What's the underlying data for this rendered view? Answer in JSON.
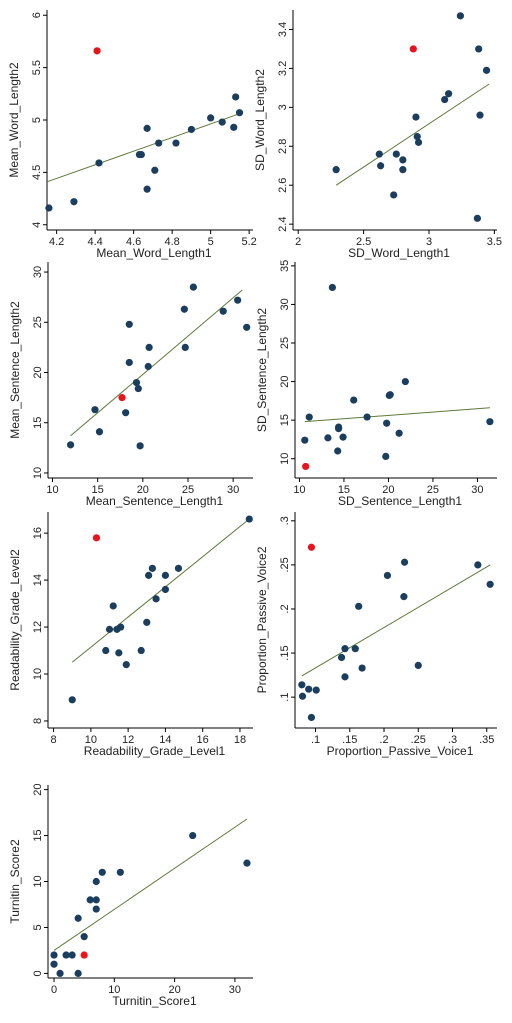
{
  "colors": {
    "point": "#1c3e5e",
    "outlier": "#e8141d",
    "fit_line": "#5f7a3a",
    "axis": "#000000"
  },
  "chart_data": [
    {
      "type": "scatter",
      "xlabel": "Mean_Word_Length1",
      "ylabel": "Mean_Word_Length2",
      "xlim": [
        4.15,
        5.22
      ],
      "ylim": [
        3.95,
        6.05
      ],
      "xticks": [
        4.2,
        4.4,
        4.6,
        4.8,
        5,
        5.2
      ],
      "xtick_labels": [
        "4.2",
        "4.4",
        "4.6",
        "4.8",
        "5",
        "5.2"
      ],
      "yticks": [
        4,
        4.5,
        5,
        5.5,
        6
      ],
      "ytick_labels": [
        "4",
        "4.5",
        "5",
        "5.5",
        "6"
      ],
      "points": [
        [
          4.16,
          4.16
        ],
        [
          4.29,
          4.22
        ],
        [
          4.42,
          4.59
        ],
        [
          4.63,
          4.67
        ],
        [
          4.64,
          4.67
        ],
        [
          4.67,
          4.34
        ],
        [
          4.67,
          4.92
        ],
        [
          4.71,
          4.52
        ],
        [
          4.73,
          4.78
        ],
        [
          4.82,
          4.78
        ],
        [
          4.9,
          4.91
        ],
        [
          5,
          5.02
        ],
        [
          5.06,
          4.98
        ],
        [
          5.12,
          4.93
        ],
        [
          5.13,
          5.22
        ],
        [
          5.15,
          5.07
        ]
      ],
      "outliers": [
        [
          4.41,
          5.66
        ]
      ],
      "fit_line": [
        [
          4.15,
          4.41
        ],
        [
          5.15,
          5.06
        ]
      ]
    },
    {
      "type": "scatter",
      "xlabel": "SD_Word_Length1",
      "ylabel": "SD_Word_Length2",
      "xlim": [
        1.96,
        3.52
      ],
      "ylim": [
        2.37,
        3.5
      ],
      "xticks": [
        2,
        2.5,
        3,
        3.5
      ],
      "xtick_labels": [
        "2",
        "2.5",
        "3",
        "3.5"
      ],
      "yticks": [
        2.4,
        2.6,
        2.8,
        3,
        3.2,
        3.4
      ],
      "ytick_labels": [
        "2.4",
        "2.6",
        "2.8",
        "3",
        "3.2",
        "3.4"
      ],
      "points": [
        [
          2.29,
          2.68
        ],
        [
          2.62,
          2.76
        ],
        [
          2.63,
          2.7
        ],
        [
          2.73,
          2.55
        ],
        [
          2.75,
          2.76
        ],
        [
          2.8,
          2.73
        ],
        [
          2.8,
          2.68
        ],
        [
          2.9,
          2.95
        ],
        [
          2.91,
          2.85
        ],
        [
          2.92,
          2.82
        ],
        [
          3.12,
          3.04
        ],
        [
          3.15,
          3.07
        ],
        [
          3.24,
          3.47
        ],
        [
          3.37,
          2.43
        ],
        [
          3.38,
          3.3
        ],
        [
          3.39,
          2.96
        ],
        [
          3.44,
          3.19
        ]
      ],
      "outliers": [
        [
          2.88,
          3.3
        ]
      ],
      "fit_line": [
        [
          2.29,
          2.6
        ],
        [
          3.46,
          3.12
        ]
      ]
    },
    {
      "type": "scatter",
      "xlabel": "Mean_Sentence_Length1",
      "ylabel": "Mean_Sentence_Length2",
      "xlim": [
        9.5,
        32.2
      ],
      "ylim": [
        9.5,
        31
      ],
      "xticks": [
        10,
        15,
        20,
        25,
        30
      ],
      "xtick_labels": [
        "10",
        "15",
        "20",
        "25",
        "30"
      ],
      "yticks": [
        10,
        15,
        20,
        25,
        30
      ],
      "ytick_labels": [
        "10",
        "15",
        "20",
        "25",
        "30"
      ],
      "points": [
        [
          12,
          12.8
        ],
        [
          14.7,
          16.3
        ],
        [
          15.2,
          14.1
        ],
        [
          18.1,
          16
        ],
        [
          18.5,
          24.8
        ],
        [
          18.5,
          21
        ],
        [
          19.3,
          19
        ],
        [
          19.5,
          18.4
        ],
        [
          19.7,
          12.7
        ],
        [
          20.6,
          20.6
        ],
        [
          20.7,
          22.5
        ],
        [
          24.6,
          26.3
        ],
        [
          24.7,
          22.5
        ],
        [
          25.6,
          28.5
        ],
        [
          28.9,
          26.1
        ],
        [
          30.5,
          27.2
        ],
        [
          31.5,
          24.5
        ]
      ],
      "outliers": [
        [
          17.7,
          17.5
        ]
      ],
      "fit_line": [
        [
          12,
          13.7
        ],
        [
          31,
          28.2
        ]
      ]
    },
    {
      "type": "scatter",
      "xlabel": "SD_Sentence_Length1",
      "ylabel": "SD_Sentence_Length2",
      "xlim": [
        9.5,
        32.2
      ],
      "ylim": [
        7.5,
        35.5
      ],
      "xticks": [
        10,
        15,
        20,
        25,
        30
      ],
      "xtick_labels": [
        "10",
        "15",
        "20",
        "25",
        "30"
      ],
      "yticks": [
        10,
        15,
        20,
        25,
        30,
        35
      ],
      "ytick_labels": [
        "10",
        "15",
        "20",
        "25",
        "30",
        "35"
      ],
      "points": [
        [
          10.6,
          12.4
        ],
        [
          11.1,
          15.4
        ],
        [
          13.2,
          12.7
        ],
        [
          13.7,
          32.2
        ],
        [
          14.3,
          11
        ],
        [
          14.4,
          13.9
        ],
        [
          14.4,
          14.1
        ],
        [
          14.9,
          12.8
        ],
        [
          16.1,
          17.6
        ],
        [
          17.6,
          15.4
        ],
        [
          19.7,
          10.3
        ],
        [
          19.8,
          14.6
        ],
        [
          20.1,
          18.2
        ],
        [
          20.2,
          18.3
        ],
        [
          21.2,
          13.3
        ],
        [
          21.9,
          20
        ],
        [
          31.4,
          14.8
        ]
      ],
      "outliers": [
        [
          10.7,
          9
        ]
      ],
      "fit_line": [
        [
          10.6,
          14.8
        ],
        [
          31.4,
          16.6
        ]
      ]
    },
    {
      "type": "scatter",
      "xlabel": "Readability_Grade_Level1",
      "ylabel": "Readability_Grade_Level2",
      "xlim": [
        7.7,
        18.7
      ],
      "ylim": [
        7.7,
        16.9
      ],
      "xticks": [
        8,
        10,
        12,
        14,
        16,
        18
      ],
      "xtick_labels": [
        "8",
        "10",
        "12",
        "14",
        "16",
        "18"
      ],
      "yticks": [
        8,
        10,
        12,
        14,
        16
      ],
      "ytick_labels": [
        "8",
        "10",
        "12",
        "14",
        "16"
      ],
      "points": [
        [
          9,
          8.9
        ],
        [
          10.8,
          11
        ],
        [
          11,
          11.9
        ],
        [
          11.2,
          12.9
        ],
        [
          11.4,
          11.9
        ],
        [
          11.5,
          10.9
        ],
        [
          11.6,
          12
        ],
        [
          11.9,
          10.4
        ],
        [
          12.7,
          11
        ],
        [
          13,
          12.2
        ],
        [
          13.1,
          14.2
        ],
        [
          13.3,
          14.5
        ],
        [
          13.5,
          13.2
        ],
        [
          14,
          14.2
        ],
        [
          14,
          13.6
        ],
        [
          14.7,
          14.5
        ],
        [
          18.5,
          16.6
        ]
      ],
      "outliers": [
        [
          10.3,
          15.8
        ]
      ],
      "fit_line": [
        [
          9,
          10.5
        ],
        [
          18.5,
          16.6
        ]
      ]
    },
    {
      "type": "scatter",
      "xlabel": "Proportion_Passive_Voice1",
      "ylabel": "Proportion_Passive_Voice2",
      "xlim": [
        0.07,
        0.365
      ],
      "ylim": [
        0.065,
        0.31
      ],
      "xticks": [
        0.1,
        0.15,
        0.2,
        0.25,
        0.3,
        0.35
      ],
      "xtick_labels": [
        ".1",
        ".15",
        ".2",
        ".25",
        ".3",
        ".35"
      ],
      "yticks": [
        0.1,
        0.15,
        0.2,
        0.25,
        0.3
      ],
      "ytick_labels": [
        ".1",
        ".15",
        ".2",
        ".25",
        ".3"
      ],
      "points": [
        [
          0.08,
          0.114
        ],
        [
          0.081,
          0.101
        ],
        [
          0.09,
          0.109
        ],
        [
          0.094,
          0.077
        ],
        [
          0.101,
          0.108
        ],
        [
          0.138,
          0.145
        ],
        [
          0.143,
          0.155
        ],
        [
          0.143,
          0.123
        ],
        [
          0.158,
          0.155
        ],
        [
          0.163,
          0.203
        ],
        [
          0.168,
          0.133
        ],
        [
          0.205,
          0.238
        ],
        [
          0.229,
          0.214
        ],
        [
          0.23,
          0.253
        ],
        [
          0.25,
          0.136
        ],
        [
          0.337,
          0.25
        ],
        [
          0.355,
          0.228
        ]
      ],
      "outliers": [
        [
          0.094,
          0.27
        ]
      ],
      "fit_line": [
        [
          0.08,
          0.124
        ],
        [
          0.355,
          0.25
        ]
      ]
    },
    {
      "type": "scatter",
      "xlabel": "Turnitin_Score1",
      "ylabel": "Turnitin_Score2",
      "xlim": [
        -1,
        33
      ],
      "ylim": [
        -0.5,
        20.5
      ],
      "xticks": [
        0,
        10,
        20,
        30
      ],
      "xtick_labels": [
        "0",
        "10",
        "20",
        "30"
      ],
      "yticks": [
        0,
        5,
        10,
        15,
        20
      ],
      "ytick_labels": [
        "0",
        "5",
        "10",
        "15",
        "20"
      ],
      "points": [
        [
          0,
          2
        ],
        [
          0,
          1
        ],
        [
          1,
          0
        ],
        [
          2,
          2
        ],
        [
          3,
          2
        ],
        [
          4,
          0
        ],
        [
          4,
          6
        ],
        [
          5,
          4
        ],
        [
          6,
          8
        ],
        [
          7,
          8
        ],
        [
          7,
          10
        ],
        [
          7,
          7
        ],
        [
          8,
          11
        ],
        [
          11,
          11
        ],
        [
          23,
          15
        ],
        [
          32,
          12
        ]
      ],
      "outliers": [
        [
          5,
          2
        ]
      ],
      "fit_line": [
        [
          0,
          2.5
        ],
        [
          32,
          16.8
        ]
      ]
    }
  ]
}
